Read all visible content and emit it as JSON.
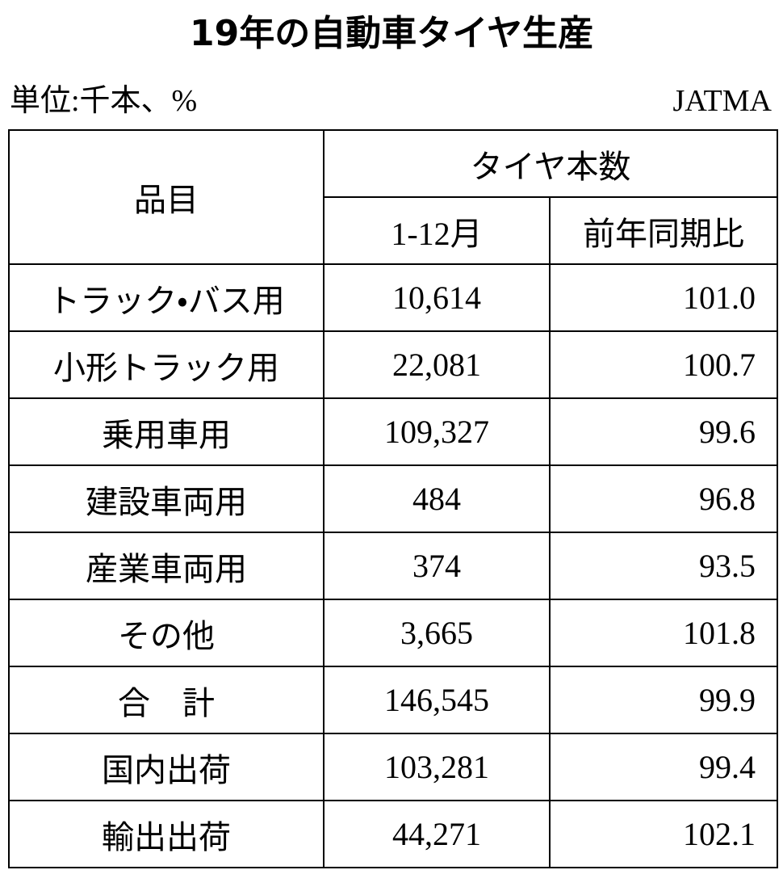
{
  "title": "19年の自動車タイヤ生産",
  "unit": "単位:千本、%",
  "source": "JATMA",
  "table": {
    "header": {
      "item": "品目",
      "group": "タイヤ本数",
      "period": "1-12月",
      "ratio": "前年同期比"
    },
    "rows": [
      [
        "トラック・バス用",
        "10,614",
        "101.0"
      ],
      [
        "小形トラック用",
        "22,081",
        "100.7"
      ],
      [
        "乗用車用",
        "109,327",
        "99.6"
      ],
      [
        "建設車両用",
        "484",
        "96.8"
      ],
      [
        "産業車両用",
        "374",
        "93.5"
      ],
      [
        "その他",
        "3,665",
        "101.8"
      ],
      [
        "合　計",
        "146,545",
        "99.9"
      ],
      [
        "国内出荷",
        "103,281",
        "99.4"
      ],
      [
        "輸出出荷",
        "44,271",
        "102.1"
      ]
    ]
  }
}
